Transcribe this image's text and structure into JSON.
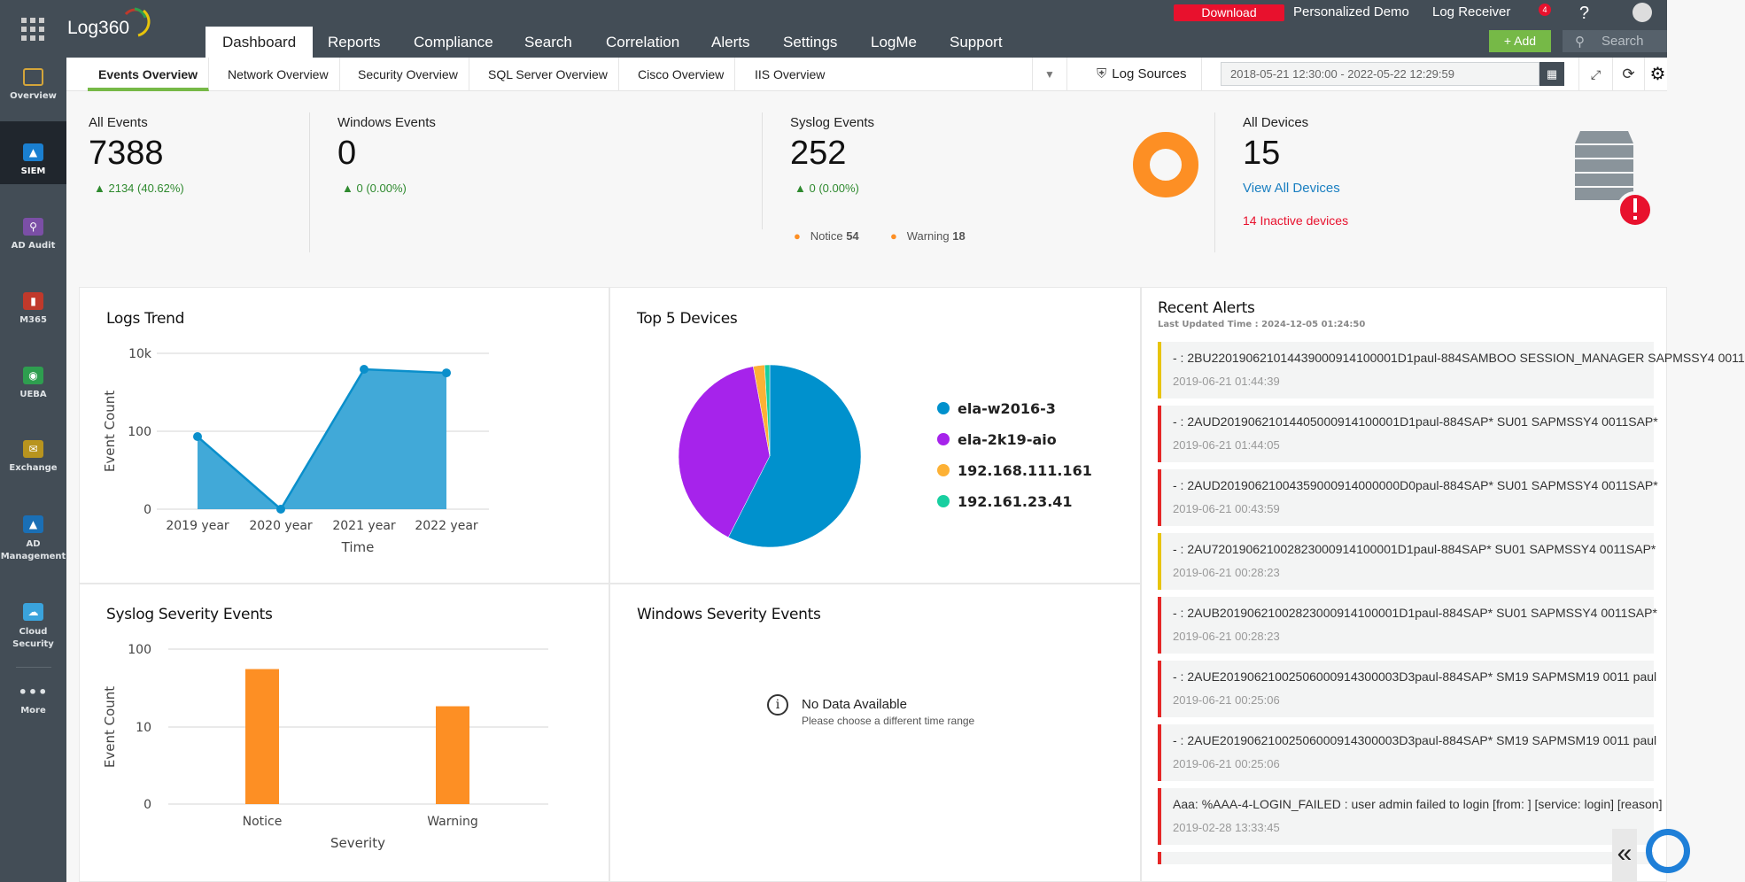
{
  "app": {
    "logo": "Log360"
  },
  "topnav": {
    "tabs": [
      "Dashboard",
      "Reports",
      "Compliance",
      "Search",
      "Correlation",
      "Alerts",
      "Settings",
      "LogMe",
      "Support"
    ],
    "download": "Download",
    "personalized_demo": "Personalized Demo",
    "log_receiver": "Log Receiver",
    "notif_count": "4",
    "help": "?",
    "add": "+ Add",
    "search_placeholder": "Search"
  },
  "sidebar": {
    "items": [
      {
        "label": "Overview",
        "color": "#d4a53a"
      },
      {
        "label": "SIEM",
        "color": "#1a7fd0"
      },
      {
        "label": "AD Audit",
        "color": "#7b4fa6"
      },
      {
        "label": "M365",
        "color": "#c0392b"
      },
      {
        "label": "UEBA",
        "color": "#2e9e4f"
      },
      {
        "label": "Exchange",
        "color": "#b8941e"
      },
      {
        "label": "AD Management",
        "color": "#1a6fb5"
      },
      {
        "label": "Cloud Security",
        "color": "#3aa3dc"
      },
      {
        "label": "More",
        "color": ""
      }
    ]
  },
  "subtabs": [
    "Events Overview",
    "Network Overview",
    "Security Overview",
    "SQL Server Overview",
    "Cisco Overview",
    "IIS Overview"
  ],
  "toolbar": {
    "log_sources": "Log Sources",
    "date_range": "2018-05-21 12:30:00 - 2022-05-22 12:29:59"
  },
  "stats": {
    "all_events": {
      "label": "All Events",
      "value": "7388",
      "change": "2134 (40.62%)"
    },
    "windows_events": {
      "label": "Windows Events",
      "value": "0",
      "change": "0 (0.00%)"
    },
    "syslog_events": {
      "label": "Syslog Events",
      "value": "252",
      "change": "0 (0.00%)",
      "legend": [
        {
          "label": "Notice",
          "value": "54"
        },
        {
          "label": "Warning",
          "value": "18"
        }
      ]
    },
    "all_devices": {
      "label": "All Devices",
      "value": "15",
      "view_all": "View All Devices",
      "inactive": "14 Inactive devices"
    }
  },
  "panels": {
    "logs_trend": "Logs Trend",
    "top_devices": "Top 5 Devices",
    "syslog_severity": "Syslog Severity Events",
    "windows_severity": "Windows Severity Events",
    "no_data": "No Data Available",
    "no_data_hint": "Please choose a different time range"
  },
  "chart_data": [
    {
      "type": "area",
      "title": "Logs Trend",
      "xlabel": "Time",
      "ylabel": "Event Count",
      "yscale": "log",
      "yticks": [
        "0",
        "100",
        "10k"
      ],
      "categories": [
        "2019 year",
        "2020 year",
        "2021 year",
        "2022 year"
      ],
      "values": [
        73,
        0,
        3900,
        3150
      ]
    },
    {
      "type": "pie",
      "title": "Top 5 Devices",
      "labels": [
        "ela-w2016-3",
        "ela-2k19-aio",
        "192.168.111.161",
        "192.161.23.41"
      ],
      "values": [
        57.5,
        39.6,
        2.0,
        0.9
      ],
      "colors": [
        "#0091cd",
        "#a623eb",
        "#fdb135",
        "#18cfa0"
      ],
      "legend": "right"
    },
    {
      "type": "bar",
      "title": "Syslog Severity Events",
      "xlabel": "Severity",
      "ylabel": "Event Count",
      "yscale": "log",
      "yticks": [
        "0",
        "10",
        "100"
      ],
      "categories": [
        "Notice",
        "Warning"
      ],
      "values": [
        54,
        18
      ],
      "color": "#fd8f24"
    }
  ],
  "alerts": {
    "title": "Recent Alerts",
    "updated": "Last Updated Time : 2024-12-05 01:24:50",
    "items": [
      {
        "text": "- : 2BU220190621014439000914100001D1paul-884SAMBOO SESSION_MANAGER SAPMSSY4 0011",
        "time": "2019-06-21 01:44:39",
        "color": "#e8c40a"
      },
      {
        "text": "- : 2AUD20190621014405000914100001D1paul-884SAP* SU01 SAPMSSY4 0011SAP*",
        "time": "2019-06-21 01:44:05",
        "color": "#e52626"
      },
      {
        "text": "- : 2AUD20190621004359000914000000D0paul-884SAP* SU01 SAPMSSY4 0011SAP*",
        "time": "2019-06-21 00:43:59",
        "color": "#e52626"
      },
      {
        "text": "- : 2AU720190621002823000914100001D1paul-884SAP* SU01 SAPMSSY4 0011SAP*",
        "time": "2019-06-21 00:28:23",
        "color": "#e8c40a"
      },
      {
        "text": "- : 2AUB20190621002823000914100001D1paul-884SAP* SU01 SAPMSSY4 0011SAP*",
        "time": "2019-06-21 00:28:23",
        "color": "#e52626"
      },
      {
        "text": "- : 2AUE20190621002506000914300003D3paul-884SAP* SM19 SAPMSM19 0011 paul",
        "time": "2019-06-21 00:25:06",
        "color": "#e52626"
      },
      {
        "text": "- : 2AUE20190621002506000914300003D3paul-884SAP* SM19 SAPMSM19 0011 paul",
        "time": "2019-06-21 00:25:06",
        "color": "#e52626"
      },
      {
        "text": "Aaa: %AAA-4-LOGIN_FAILED : user admin failed to login [from: ] [service: login] [reason]",
        "time": "2019-02-28 13:33:45",
        "color": "#e52626"
      }
    ]
  },
  "footer": {
    "collapse": "«"
  }
}
